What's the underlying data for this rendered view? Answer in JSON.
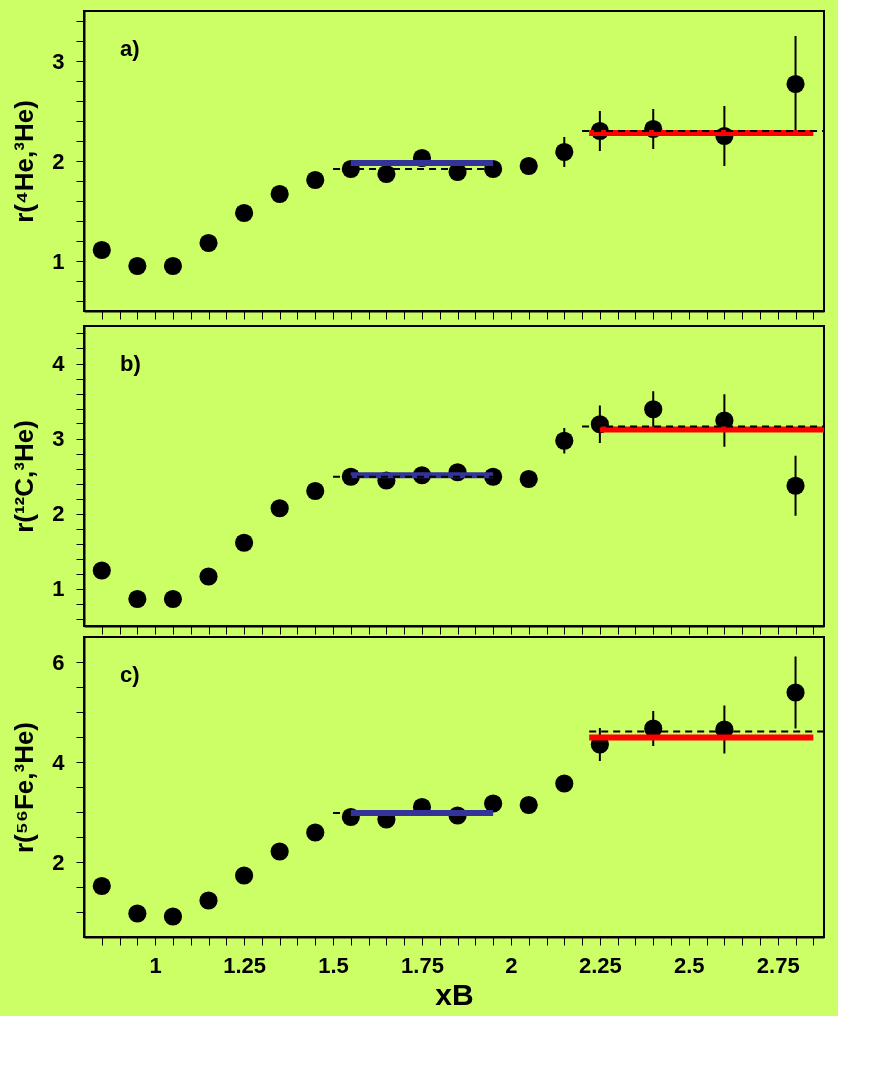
{
  "chart_data": [
    {
      "type": "scatter",
      "ylabel": "r(⁴He,³He)",
      "annotations": [
        "a)"
      ],
      "tick_labels": "y",
      "grid": false,
      "x": [
        0.85,
        0.95,
        1.05,
        1.15,
        1.25,
        1.35,
        1.45,
        1.55,
        1.65,
        1.75,
        1.85,
        1.95,
        2.05,
        2.15,
        2.25,
        2.4,
        2.6,
        2.8
      ],
      "xlim": [
        0.8,
        2.88
      ],
      "xticks": [
        {
          "value": 0.85,
          "label": null
        },
        {
          "value": 0.9,
          "label": null
        },
        {
          "value": 0.95,
          "label": null
        },
        1,
        {
          "value": 1.05,
          "label": null
        },
        {
          "value": 1.1,
          "label": null
        },
        {
          "value": 1.15,
          "label": null
        },
        {
          "value": 1.2,
          "label": null
        },
        1.25,
        {
          "value": 1.3,
          "label": null
        },
        {
          "value": 1.35,
          "label": null
        },
        {
          "value": 1.4,
          "label": null
        },
        {
          "value": 1.45,
          "label": null
        },
        1.5,
        {
          "value": 1.55,
          "label": null
        },
        {
          "value": 1.6,
          "label": null
        },
        {
          "value": 1.65,
          "label": null
        },
        {
          "value": 1.7,
          "label": null
        },
        1.75,
        {
          "value": 1.8,
          "label": null
        },
        {
          "value": 1.85,
          "label": null
        },
        {
          "value": 1.9,
          "label": null
        },
        {
          "value": 1.95,
          "label": null
        },
        2,
        {
          "value": 2.05,
          "label": null
        },
        {
          "value": 2.1,
          "label": null
        },
        {
          "value": 2.15,
          "label": null
        },
        {
          "value": 2.2,
          "label": null
        },
        2.25,
        {
          "value": 2.3,
          "label": null
        },
        {
          "value": 2.35,
          "label": null
        },
        {
          "value": 2.4,
          "label": null
        },
        {
          "value": 2.45,
          "label": null
        },
        2.5,
        {
          "value": 2.55,
          "label": null
        },
        {
          "value": 2.6,
          "label": null
        },
        {
          "value": 2.65,
          "label": null
        },
        {
          "value": 2.7,
          "label": null
        },
        2.75,
        {
          "value": 2.8,
          "label": null
        },
        {
          "value": 2.85,
          "label": null
        }
      ],
      "ylim": [
        0.5,
        3.5
      ],
      "yticks": [
        {
          "value": 0.6,
          "label": null
        },
        {
          "value": 0.8,
          "label": null
        },
        1,
        {
          "value": 1.2,
          "label": null
        },
        {
          "value": 1.4,
          "label": null
        },
        {
          "value": 1.6,
          "label": null
        },
        {
          "value": 1.8,
          "label": null
        },
        2,
        {
          "value": 2.2,
          "label": null
        },
        {
          "value": 2.4,
          "label": null
        },
        {
          "value": 2.6,
          "label": null
        },
        {
          "value": 2.8,
          "label": null
        },
        3,
        {
          "value": 3.2,
          "label": null
        },
        {
          "value": 3.4,
          "label": null
        }
      ],
      "series": [
        {
          "marker": "circle",
          "color": "#000000",
          "values": [
            1.11,
            0.95,
            0.95,
            1.18,
            1.48,
            1.67,
            1.81,
            1.92,
            1.87,
            2.03,
            1.89,
            1.92,
            1.95,
            2.09,
            2.3,
            2.32,
            2.25,
            2.77
          ],
          "errors": [
            null,
            null,
            null,
            null,
            null,
            null,
            null,
            null,
            null,
            null,
            null,
            null,
            null,
            0.15,
            0.2,
            0.2,
            0.3,
            0.48
          ]
        },
        {
          "type": "line",
          "line_style": "solid",
          "color": "#333399",
          "x": [
            1.55,
            1.95
          ],
          "values": [
            1.98,
            1.98
          ]
        },
        {
          "type": "line",
          "line_style": "dashed",
          "color": "#000000",
          "x": [
            1.5,
            1.95
          ],
          "values": [
            1.92,
            1.92
          ]
        },
        {
          "type": "line",
          "line_style": "solid",
          "color": "#ff0000",
          "x": [
            2.22,
            2.85
          ],
          "values": [
            2.28,
            2.28
          ]
        },
        {
          "type": "line",
          "line_style": "dashed",
          "color": "#000000",
          "x": [
            2.2,
            2.88
          ],
          "values": [
            2.3,
            2.3
          ]
        }
      ]
    },
    {
      "type": "scatter",
      "ylabel": "r(¹²C,³He)",
      "annotations": [
        "b)"
      ],
      "tick_labels": "y",
      "grid": false,
      "x": [
        0.85,
        0.95,
        1.05,
        1.15,
        1.25,
        1.35,
        1.45,
        1.55,
        1.65,
        1.75,
        1.85,
        1.95,
        2.05,
        2.15,
        2.25,
        2.4,
        2.6,
        2.8
      ],
      "xlim": [
        0.8,
        2.88
      ],
      "xticks": [
        {
          "value": 0.85,
          "label": null
        },
        {
          "value": 0.9,
          "label": null
        },
        {
          "value": 0.95,
          "label": null
        },
        1,
        {
          "value": 1.05,
          "label": null
        },
        {
          "value": 1.1,
          "label": null
        },
        {
          "value": 1.15,
          "label": null
        },
        {
          "value": 1.2,
          "label": null
        },
        1.25,
        {
          "value": 1.3,
          "label": null
        },
        {
          "value": 1.35,
          "label": null
        },
        {
          "value": 1.4,
          "label": null
        },
        {
          "value": 1.45,
          "label": null
        },
        1.5,
        {
          "value": 1.55,
          "label": null
        },
        {
          "value": 1.6,
          "label": null
        },
        {
          "value": 1.65,
          "label": null
        },
        {
          "value": 1.7,
          "label": null
        },
        1.75,
        {
          "value": 1.8,
          "label": null
        },
        {
          "value": 1.85,
          "label": null
        },
        {
          "value": 1.9,
          "label": null
        },
        {
          "value": 1.95,
          "label": null
        },
        2,
        {
          "value": 2.05,
          "label": null
        },
        {
          "value": 2.1,
          "label": null
        },
        {
          "value": 2.15,
          "label": null
        },
        {
          "value": 2.2,
          "label": null
        },
        2.25,
        {
          "value": 2.3,
          "label": null
        },
        {
          "value": 2.35,
          "label": null
        },
        {
          "value": 2.4,
          "label": null
        },
        {
          "value": 2.45,
          "label": null
        },
        2.5,
        {
          "value": 2.55,
          "label": null
        },
        {
          "value": 2.6,
          "label": null
        },
        {
          "value": 2.65,
          "label": null
        },
        {
          "value": 2.7,
          "label": null
        },
        2.75,
        {
          "value": 2.8,
          "label": null
        },
        {
          "value": 2.85,
          "label": null
        }
      ],
      "ylim": [
        0.5,
        4.5
      ],
      "yticks": [
        {
          "value": 0.6,
          "label": null
        },
        {
          "value": 0.8,
          "label": null
        },
        1,
        {
          "value": 1.2,
          "label": null
        },
        {
          "value": 1.4,
          "label": null
        },
        {
          "value": 1.6,
          "label": null
        },
        {
          "value": 1.8,
          "label": null
        },
        2,
        {
          "value": 2.2,
          "label": null
        },
        {
          "value": 2.4,
          "label": null
        },
        {
          "value": 2.6,
          "label": null
        },
        {
          "value": 2.8,
          "label": null
        },
        3,
        {
          "value": 3.2,
          "label": null
        },
        {
          "value": 3.4,
          "label": null
        },
        {
          "value": 3.6,
          "label": null
        },
        {
          "value": 3.8,
          "label": null
        },
        4,
        {
          "value": 4.2,
          "label": null
        },
        {
          "value": 4.4,
          "label": null
        }
      ],
      "series": [
        {
          "marker": "circle",
          "color": "#000000",
          "values": [
            1.24,
            0.86,
            0.86,
            1.16,
            1.61,
            2.07,
            2.3,
            2.49,
            2.44,
            2.51,
            2.55,
            2.49,
            2.46,
            2.97,
            3.19,
            3.39,
            3.24,
            2.37
          ],
          "errors": [
            null,
            null,
            null,
            null,
            null,
            null,
            null,
            null,
            null,
            null,
            null,
            null,
            null,
            0.17,
            0.25,
            0.24,
            0.35,
            0.4
          ]
        },
        {
          "type": "line",
          "line_style": "solid",
          "color": "#333399",
          "x": [
            1.55,
            1.95
          ],
          "values": [
            2.51,
            2.51
          ]
        },
        {
          "type": "line",
          "line_style": "dashed",
          "color": "#000000",
          "x": [
            1.5,
            1.95
          ],
          "values": [
            2.49,
            2.49
          ]
        },
        {
          "type": "line",
          "line_style": "solid",
          "color": "#ff0000",
          "x": [
            2.25,
            2.88
          ],
          "values": [
            3.12,
            3.12
          ]
        },
        {
          "type": "line",
          "line_style": "dashed",
          "color": "#000000",
          "x": [
            2.2,
            2.88
          ],
          "values": [
            3.16,
            3.16
          ]
        }
      ]
    },
    {
      "type": "scatter",
      "ylabel": "r(⁵⁶Fe,³He)",
      "xlabel": "xB",
      "annotations": [
        "c)"
      ],
      "grid": false,
      "x": [
        0.85,
        0.95,
        1.05,
        1.15,
        1.25,
        1.35,
        1.45,
        1.55,
        1.65,
        1.75,
        1.85,
        1.95,
        2.05,
        2.15,
        2.25,
        2.4,
        2.6,
        2.8
      ],
      "xlim": [
        0.8,
        2.88
      ],
      "xticks": [
        {
          "value": 0.85,
          "label": null
        },
        {
          "value": 0.9,
          "label": null
        },
        {
          "value": 0.95,
          "label": null
        },
        1,
        {
          "value": 1.05,
          "label": null
        },
        {
          "value": 1.1,
          "label": null
        },
        {
          "value": 1.15,
          "label": null
        },
        {
          "value": 1.2,
          "label": null
        },
        1.25,
        {
          "value": 1.3,
          "label": null
        },
        {
          "value": 1.35,
          "label": null
        },
        {
          "value": 1.4,
          "label": null
        },
        {
          "value": 1.45,
          "label": null
        },
        1.5,
        {
          "value": 1.55,
          "label": null
        },
        {
          "value": 1.6,
          "label": null
        },
        {
          "value": 1.65,
          "label": null
        },
        {
          "value": 1.7,
          "label": null
        },
        1.75,
        {
          "value": 1.8,
          "label": null
        },
        {
          "value": 1.85,
          "label": null
        },
        {
          "value": 1.9,
          "label": null
        },
        {
          "value": 1.95,
          "label": null
        },
        2,
        {
          "value": 2.05,
          "label": null
        },
        {
          "value": 2.1,
          "label": null
        },
        {
          "value": 2.15,
          "label": null
        },
        {
          "value": 2.2,
          "label": null
        },
        2.25,
        {
          "value": 2.3,
          "label": null
        },
        {
          "value": 2.35,
          "label": null
        },
        {
          "value": 2.4,
          "label": null
        },
        {
          "value": 2.45,
          "label": null
        },
        2.5,
        {
          "value": 2.55,
          "label": null
        },
        {
          "value": 2.6,
          "label": null
        },
        {
          "value": 2.65,
          "label": null
        },
        {
          "value": 2.7,
          "label": null
        },
        2.75,
        {
          "value": 2.8,
          "label": null
        },
        {
          "value": 2.85,
          "label": null
        }
      ],
      "ylim": [
        0.5,
        6.5
      ],
      "yticks": [
        {
          "value": 1,
          "label": null
        },
        {
          "value": 1.5,
          "label": null
        },
        2,
        {
          "value": 2.5,
          "label": null
        },
        {
          "value": 3,
          "label": null
        },
        {
          "value": 3.5,
          "label": null
        },
        4,
        {
          "value": 4.5,
          "label": null
        },
        {
          "value": 5,
          "label": null
        },
        {
          "value": 5.5,
          "label": null
        },
        6
      ],
      "series": [
        {
          "marker": "circle",
          "color": "#000000",
          "values": [
            1.52,
            0.97,
            0.91,
            1.23,
            1.73,
            2.21,
            2.59,
            2.9,
            2.85,
            3.1,
            2.93,
            3.17,
            3.14,
            3.57,
            4.35,
            4.67,
            4.65,
            5.39
          ],
          "errors": [
            null,
            null,
            null,
            null,
            null,
            null,
            null,
            null,
            null,
            null,
            null,
            null,
            null,
            null,
            0.33,
            0.35,
            0.48,
            0.72
          ]
        },
        {
          "type": "line",
          "line_style": "dashed",
          "color": "#000000",
          "x": [
            1.5,
            1.55
          ],
          "values": [
            2.98,
            2.98
          ]
        },
        {
          "type": "line",
          "line_style": "solid",
          "color": "#333399",
          "x": [
            1.55,
            1.95
          ],
          "values": [
            2.98,
            2.98
          ]
        },
        {
          "type": "line",
          "line_style": "dashed",
          "color": "#000000",
          "x": [
            2.22,
            2.88
          ],
          "values": [
            4.61,
            4.61
          ]
        },
        {
          "type": "line",
          "line_style": "solid",
          "color": "#ff0000",
          "x": [
            2.22,
            2.85
          ],
          "values": [
            4.49,
            4.49
          ]
        }
      ]
    }
  ]
}
